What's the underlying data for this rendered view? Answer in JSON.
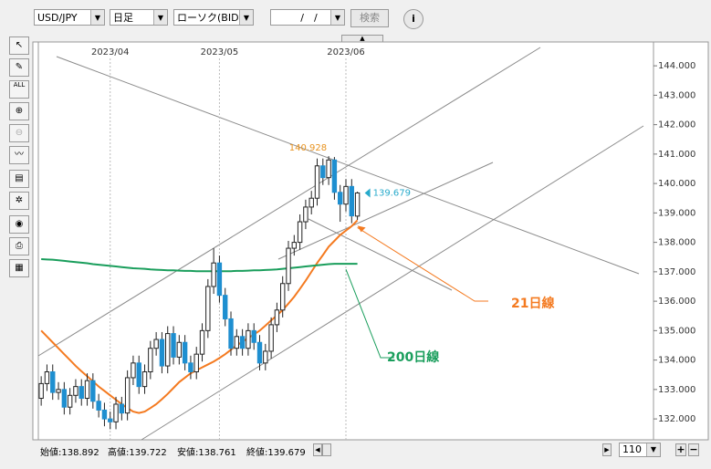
{
  "toolbar": {
    "pair": "USD/JPY",
    "period": "日足",
    "style": "ローソク(BID)",
    "date": "/　/",
    "search": "検索",
    "all_icon": "ALL"
  },
  "status": {
    "open": "始値:138.892",
    "high": "高値:139.722",
    "low": "安値:138.761",
    "close": "終値:139.679",
    "count": "110"
  },
  "chart_data": {
    "type": "candlestick",
    "xlim": [
      -0.5,
      106.5
    ],
    "xticks": [
      {
        "value": 12,
        "label": "2023/04"
      },
      {
        "value": 31,
        "label": "2023/05"
      },
      {
        "value": 53,
        "label": "2023/06"
      }
    ],
    "ylim": [
      131.29,
      144.81
    ],
    "yticks": [
      {
        "value": 132,
        "label": "132.000"
      },
      {
        "value": 133,
        "label": "133.000"
      },
      {
        "value": 134,
        "label": "134.000"
      },
      {
        "value": 135,
        "label": "135.000"
      },
      {
        "value": 136,
        "label": "136.000"
      },
      {
        "value": 137,
        "label": "137.000"
      },
      {
        "value": 138,
        "label": "138.000"
      },
      {
        "value": 139,
        "label": "139.000"
      },
      {
        "value": 140,
        "label": "140.000"
      },
      {
        "value": 141,
        "label": "141.000"
      },
      {
        "value": 142,
        "label": "142.000"
      },
      {
        "value": 143,
        "label": "143.000"
      },
      {
        "value": 144,
        "label": "144.000"
      }
    ],
    "grid": "x",
    "up_color": "#ffffff",
    "down_color": "#1e8fd0",
    "ohlc": {
      "open": [
        132.7,
        133.2,
        133.6,
        132.9,
        133.0,
        132.4,
        132.8,
        133.1,
        132.7,
        133.3,
        132.6,
        132.3,
        132.0,
        131.9,
        132.5,
        132.2,
        133.4,
        133.9,
        133.1,
        133.6,
        134.4,
        134.7,
        133.8,
        134.9,
        134.1,
        134.6,
        133.9,
        133.6,
        134.2,
        135.0,
        136.5,
        137.3,
        136.2,
        135.4,
        134.4,
        134.8,
        134.4,
        135.0,
        134.6,
        133.9,
        134.3,
        135.2,
        135.7,
        136.6,
        137.8,
        138.0,
        138.7,
        139.2,
        139.5,
        140.6,
        140.2,
        140.8,
        139.7,
        139.3,
        139.9,
        138.892
      ],
      "high": [
        133.45,
        133.85,
        133.85,
        133.25,
        133.25,
        133.05,
        133.35,
        133.35,
        133.55,
        133.55,
        132.85,
        132.55,
        132.25,
        132.75,
        132.75,
        133.65,
        134.15,
        134.15,
        133.85,
        134.65,
        134.95,
        134.95,
        135.15,
        135.15,
        134.85,
        134.85,
        134.15,
        134.45,
        135.25,
        136.75,
        137.8,
        137.55,
        136.45,
        135.65,
        135.05,
        135.05,
        135.25,
        135.25,
        134.85,
        134.55,
        135.45,
        135.95,
        136.85,
        138.05,
        138.25,
        138.95,
        139.45,
        139.75,
        140.85,
        140.85,
        140.928,
        140.9,
        139.95,
        140.15,
        140.15,
        139.722
      ],
      "low": [
        132.45,
        132.95,
        132.65,
        132.65,
        132.15,
        132.15,
        132.55,
        132.45,
        132.45,
        132.35,
        132.05,
        131.75,
        131.65,
        131.65,
        131.95,
        131.95,
        133.15,
        132.85,
        132.85,
        133.35,
        134.15,
        133.55,
        133.55,
        133.85,
        133.85,
        133.65,
        133.35,
        133.35,
        133.95,
        134.75,
        136.25,
        135.95,
        135.15,
        134.15,
        134.15,
        134.15,
        134.15,
        134.35,
        133.65,
        133.65,
        134.05,
        134.95,
        135.45,
        136.35,
        137.55,
        137.75,
        138.45,
        138.95,
        139.25,
        139.95,
        139.95,
        139.45,
        138.7,
        139.05,
        138.65,
        138.761
      ],
      "close": [
        133.2,
        133.6,
        132.9,
        133.0,
        132.4,
        132.8,
        133.1,
        132.7,
        133.3,
        132.6,
        132.3,
        132.0,
        131.9,
        132.5,
        132.2,
        133.4,
        133.9,
        133.1,
        133.6,
        134.4,
        134.7,
        133.8,
        134.9,
        134.1,
        134.6,
        133.9,
        133.6,
        134.2,
        135.0,
        136.5,
        137.3,
        136.2,
        135.4,
        134.4,
        134.8,
        134.4,
        135.0,
        134.6,
        133.9,
        134.3,
        135.2,
        135.7,
        136.6,
        137.8,
        138.0,
        138.7,
        139.2,
        139.5,
        140.6,
        140.2,
        140.8,
        139.7,
        139.3,
        139.9,
        138.9,
        139.679
      ]
    },
    "series": [
      {
        "name": "21日線",
        "color": "#f47a20",
        "values": [
          135.0,
          134.8,
          134.6,
          134.4,
          134.2,
          134.0,
          133.8,
          133.62,
          133.45,
          133.28,
          133.1,
          132.95,
          132.8,
          132.65,
          132.5,
          132.37,
          132.25,
          132.2,
          132.25,
          132.37,
          132.5,
          132.67,
          132.85,
          133.05,
          133.25,
          133.4,
          133.55,
          133.65,
          133.75,
          133.85,
          133.95,
          134.07,
          134.2,
          134.35,
          134.5,
          134.62,
          134.75,
          134.87,
          135.0,
          135.17,
          135.35,
          135.52,
          135.7,
          135.92,
          136.15,
          136.42,
          136.7,
          137.0,
          137.3,
          137.57,
          137.85,
          138.05,
          138.25,
          138.4,
          138.55,
          138.75
        ]
      },
      {
        "name": "200日線",
        "color": "#1a9e5c",
        "values": [
          137.43,
          137.42,
          137.41,
          137.39,
          137.37,
          137.35,
          137.33,
          137.31,
          137.29,
          137.26,
          137.24,
          137.22,
          137.2,
          137.18,
          137.16,
          137.14,
          137.12,
          137.11,
          137.1,
          137.08,
          137.07,
          137.06,
          137.05,
          137.05,
          137.04,
          137.03,
          137.03,
          137.02,
          137.02,
          137.02,
          137.02,
          137.02,
          137.02,
          137.02,
          137.03,
          137.03,
          137.04,
          137.05,
          137.05,
          137.06,
          137.07,
          137.08,
          137.1,
          137.12,
          137.14,
          137.16,
          137.18,
          137.2,
          137.22,
          137.24,
          137.26,
          137.27,
          137.27,
          137.27,
          137.27,
          137.27
        ]
      }
    ],
    "peak_label": 140.928,
    "last_label": 139.679
  }
}
